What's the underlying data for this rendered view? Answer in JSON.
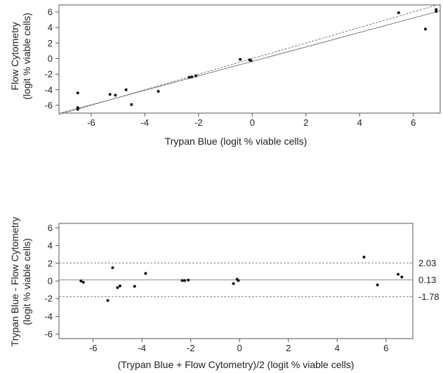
{
  "chart_data": [
    {
      "type": "scatter",
      "xlabel": "Trypan Blue (logit % viable cells)",
      "ylabel": [
        "Flow Cytometry",
        "(logit % viable cells)"
      ],
      "xlim": [
        -7.2,
        7.0
      ],
      "ylim": [
        -7.0,
        6.9
      ],
      "xticks": [
        -6,
        -4,
        -2,
        0,
        2,
        4,
        6
      ],
      "yticks": [
        -6,
        -4,
        -2,
        0,
        2,
        4,
        6
      ],
      "grid": false,
      "lines": [
        {
          "style": "solid",
          "x": [
            -7.2,
            7.0
          ],
          "y": [
            -7.05,
            6.15
          ]
        },
        {
          "style": "dashed",
          "x": [
            -7.2,
            7.0
          ],
          "y": [
            -7.2,
            7.0
          ]
        }
      ],
      "points": [
        {
          "x": -6.5,
          "y": -4.4
        },
        {
          "x": -6.5,
          "y": -6.3
        },
        {
          "x": -6.5,
          "y": -6.5
        },
        {
          "x": -5.3,
          "y": -4.6
        },
        {
          "x": -5.1,
          "y": -4.7
        },
        {
          "x": -4.7,
          "y": -4.0
        },
        {
          "x": -4.5,
          "y": -5.9
        },
        {
          "x": -3.5,
          "y": -4.2
        },
        {
          "x": -2.35,
          "y": -2.4
        },
        {
          "x": -2.25,
          "y": -2.35
        },
        {
          "x": -2.1,
          "y": -2.2
        },
        {
          "x": -0.45,
          "y": -0.1
        },
        {
          "x": -0.1,
          "y": -0.15
        },
        {
          "x": -0.05,
          "y": -0.25
        },
        {
          "x": 5.45,
          "y": 5.9
        },
        {
          "x": 6.45,
          "y": 3.8
        },
        {
          "x": 6.85,
          "y": 6.3
        },
        {
          "x": 6.85,
          "y": 6.05
        }
      ]
    },
    {
      "type": "scatter",
      "xlabel": "(Trypan Blue + Flow Cytometry)/2 (logit % viable cells)",
      "ylabel": [
        "Trypan Blue - Flow Cytometry",
        "(logit % viable cells)"
      ],
      "xlim": [
        -7.4,
        7.1
      ],
      "ylim": [
        -6.5,
        6.5
      ],
      "xticks": [
        -6,
        -4,
        -2,
        0,
        2,
        4,
        6
      ],
      "yticks": [
        -6,
        -4,
        -2,
        0,
        2,
        4,
        6
      ],
      "grid": false,
      "reference_lines": [
        {
          "y": 2.03,
          "style": "dashed",
          "label": "2.03"
        },
        {
          "y": 0.13,
          "style": "solid",
          "label": "0.13"
        },
        {
          "y": -1.78,
          "style": "dashed",
          "label": "-1.78"
        }
      ],
      "points": [
        {
          "x": -6.5,
          "y": 0.0
        },
        {
          "x": -6.4,
          "y": -0.15
        },
        {
          "x": -5.4,
          "y": -2.2
        },
        {
          "x": -5.2,
          "y": 1.5
        },
        {
          "x": -5.0,
          "y": -0.75
        },
        {
          "x": -4.9,
          "y": -0.55
        },
        {
          "x": -4.3,
          "y": -0.6
        },
        {
          "x": -3.85,
          "y": 0.85
        },
        {
          "x": -2.35,
          "y": 0.05
        },
        {
          "x": -2.25,
          "y": 0.05
        },
        {
          "x": -2.1,
          "y": 0.1
        },
        {
          "x": -0.25,
          "y": -0.3
        },
        {
          "x": -0.1,
          "y": 0.2
        },
        {
          "x": -0.05,
          "y": 0.05
        },
        {
          "x": 5.1,
          "y": 2.7
        },
        {
          "x": 5.65,
          "y": -0.45
        },
        {
          "x": 6.5,
          "y": 0.75
        },
        {
          "x": 6.65,
          "y": 0.45
        }
      ]
    }
  ]
}
